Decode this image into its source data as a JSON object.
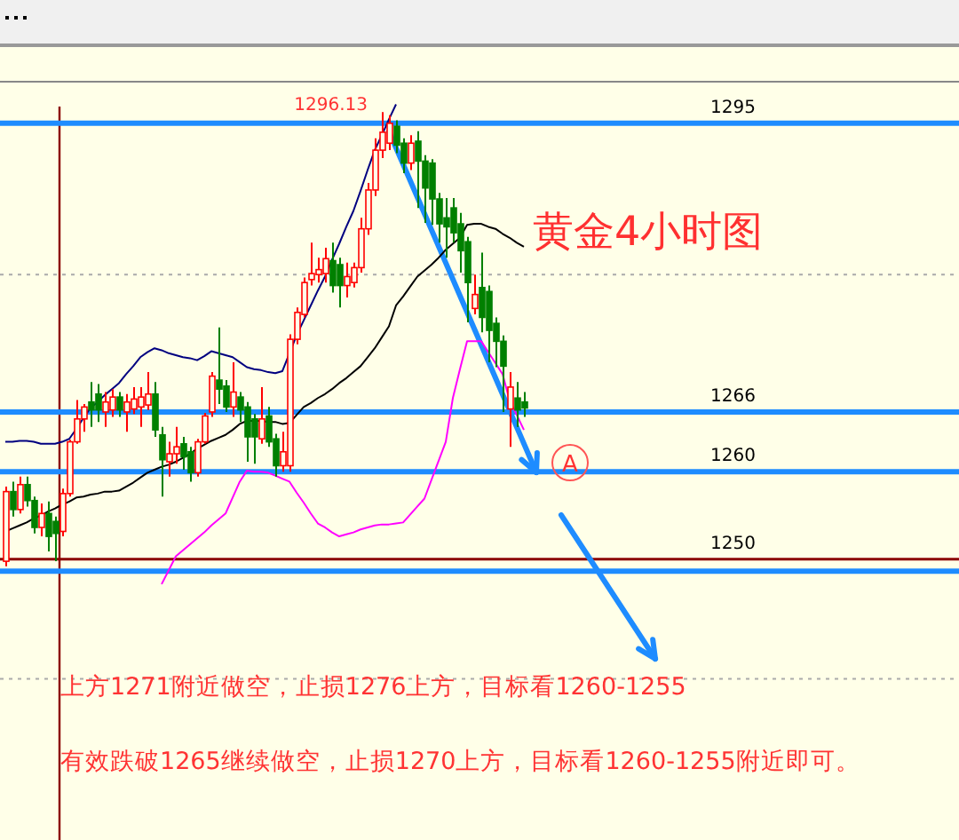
{
  "chart_data": {
    "type": "candlestick",
    "title": "黄金4小时图",
    "categories": [
      null,
      null,
      null,
      null,
      null,
      null,
      null,
      null,
      null,
      null,
      null,
      null,
      null,
      null,
      null,
      null,
      null,
      null,
      null,
      null,
      null,
      null,
      null,
      null,
      null,
      null,
      null,
      null,
      null,
      null,
      null,
      null,
      null,
      null,
      null,
      null,
      null,
      null,
      null,
      null,
      null,
      null,
      null,
      null,
      null,
      null,
      null,
      null,
      null,
      null,
      null,
      null,
      null,
      null,
      null,
      null,
      null,
      null,
      null,
      null,
      null,
      null,
      null,
      null,
      null,
      null,
      null,
      null,
      null,
      null,
      null,
      null,
      null,
      null
    ],
    "ohlc": [
      [
        1251,
        1258.5,
        1250.5,
        1258
      ],
      [
        1258,
        1259,
        1255.5,
        1256.2
      ],
      [
        1256.2,
        1259.5,
        1255.8,
        1258.7
      ],
      [
        1258.7,
        1259.5,
        1256.5,
        1257.1
      ],
      [
        1257.1,
        1257.5,
        1253.8,
        1254.4
      ],
      [
        1254.4,
        1256.8,
        1253.5,
        1255.8
      ],
      [
        1255.8,
        1257,
        1252,
        1253.5
      ],
      [
        1255,
        1255.5,
        1251,
        1253.8
      ],
      [
        1254,
        1258.3,
        1253.5,
        1257.8
      ],
      [
        1257.8,
        1263.2,
        1257.5,
        1263
      ],
      [
        1263,
        1267.2,
        1262.8,
        1265.3
      ],
      [
        1265.3,
        1266.8,
        1264,
        1266.5
      ],
      [
        1267,
        1269,
        1264.5,
        1266.2
      ],
      [
        1267.8,
        1268.8,
        1265,
        1266.2
      ],
      [
        1266,
        1268,
        1264.5,
        1267
      ],
      [
        1266.2,
        1268.3,
        1265.5,
        1267.5
      ],
      [
        1267.5,
        1268,
        1265.5,
        1266.2
      ],
      [
        1266,
        1267.8,
        1264,
        1267
      ],
      [
        1266.3,
        1268.5,
        1265.8,
        1267.3
      ],
      [
        1266.5,
        1268.5,
        1264.5,
        1267.5
      ],
      [
        1266.7,
        1270,
        1266.2,
        1267.8
      ],
      [
        1267.8,
        1269,
        1263.5,
        1264.2
      ],
      [
        1263.7,
        1264.5,
        1257.5,
        1261.2
      ],
      [
        1261,
        1263,
        1259.5,
        1261.8
      ],
      [
        1261.8,
        1264.5,
        1260.8,
        1262.5
      ],
      [
        1262.8,
        1263.5,
        1260.2,
        1261.5
      ],
      [
        1262,
        1262.5,
        1259,
        1259.9
      ],
      [
        1259.9,
        1263.3,
        1259.5,
        1263
      ],
      [
        1263,
        1265.9,
        1262.8,
        1265.6
      ],
      [
        1266,
        1270,
        1265.5,
        1269.6
      ],
      [
        1269.2,
        1274.5,
        1266.8,
        1268.3
      ],
      [
        1268.6,
        1269.2,
        1266,
        1266.5
      ],
      [
        1266.5,
        1271,
        1265.5,
        1268
      ],
      [
        1267.5,
        1268,
        1265,
        1266.2
      ],
      [
        1266.5,
        1267,
        1261,
        1263.5
      ],
      [
        1265.3,
        1265.8,
        1260.8,
        1263.5
      ],
      [
        1263.3,
        1268.5,
        1262.8,
        1265.3
      ],
      [
        1265.6,
        1266.5,
        1262.5,
        1263
      ],
      [
        1263.3,
        1263.8,
        1259.5,
        1260.6
      ],
      [
        1260.6,
        1264,
        1260,
        1262
      ],
      [
        1260.6,
        1273.8,
        1260,
        1273.3
      ],
      [
        1273.3,
        1276.5,
        1272.8,
        1276
      ],
      [
        1275.8,
        1279.5,
        1275.5,
        1279
      ],
      [
        1279.3,
        1283,
        1278.7,
        1279.9
      ],
      [
        1279.8,
        1281.5,
        1279,
        1280.3
      ],
      [
        1279.9,
        1282.5,
        1279,
        1281.4
      ],
      [
        1281.2,
        1283,
        1278,
        1278.7
      ],
      [
        1280.8,
        1281.5,
        1276.5,
        1278.7
      ],
      [
        1278.7,
        1281,
        1277.5,
        1279.6
      ],
      [
        1279,
        1281,
        1278.5,
        1280.5
      ],
      [
        1280.5,
        1285.5,
        1280,
        1284.4
      ],
      [
        1284.4,
        1289,
        1283.8,
        1288.3
      ],
      [
        1288.3,
        1293.5,
        1287.7,
        1292.3
      ],
      [
        1292.3,
        1296.13,
        1291.5,
        1294.1
      ],
      [
        1293,
        1295.8,
        1292.3,
        1295
      ],
      [
        1294.7,
        1295.3,
        1292,
        1292.8
      ],
      [
        1293,
        1293.5,
        1290,
        1291
      ],
      [
        1291,
        1293.8,
        1290.3,
        1293
      ],
      [
        1293.2,
        1294.2,
        1286.5,
        1291.2
      ],
      [
        1291.2,
        1291.8,
        1285,
        1288.5
      ],
      [
        1291,
        1291.4,
        1284.8,
        1287.4
      ],
      [
        1287.4,
        1288,
        1283,
        1284.9
      ],
      [
        1285.5,
        1287.5,
        1281.5,
        1284.6
      ],
      [
        1286.5,
        1287.5,
        1283,
        1284
      ],
      [
        1284.9,
        1286,
        1280,
        1282.2
      ],
      [
        1283.1,
        1283.6,
        1275,
        1279
      ],
      [
        1276.4,
        1279.8,
        1275.8,
        1277.8
      ],
      [
        1278.5,
        1282,
        1274,
        1275.5
      ],
      [
        1278.1,
        1278.7,
        1271,
        1274.2
      ],
      [
        1274.9,
        1275.5,
        1270.5,
        1273.1
      ],
      [
        1273.1,
        1273.7,
        1266,
        1270.6
      ],
      [
        1266.3,
        1270,
        1262.5,
        1268.5
      ],
      [
        1267.4,
        1269,
        1264.5,
        1266.2
      ],
      [
        1267,
        1268,
        1265.5,
        1266.4
      ]
    ],
    "series": [
      {
        "type": "line",
        "color": "#000000",
        "values": [
          1254.0,
          1254.3,
          1254.6,
          1254.9,
          1255.3,
          1255.6,
          1256.0,
          1256.3,
          1256.7,
          1257.0,
          1257.4,
          1257.5,
          1257.7,
          1257.8,
          1258.0,
          1258.0,
          1258.1,
          1258.5,
          1258.9,
          1259.4,
          1259.9,
          1260.2,
          1260.5,
          1260.7,
          1261.0,
          1261.4,
          1261.8,
          1262.3,
          1262.7,
          1263.1,
          1263.4,
          1263.7,
          1264.2,
          1264.8,
          1265.1,
          1265.1,
          1265.1,
          1265.0,
          1265.0,
          1264.8,
          1264.9,
          1265.7,
          1266.5,
          1266.9,
          1267.4,
          1267.8,
          1268.3,
          1268.9,
          1269.4,
          1270.0,
          1270.6,
          1271.5,
          1272.4,
          1273.5,
          1274.6,
          1276.7,
          1277.6,
          1278.6,
          1279.6,
          1280.2,
          1280.8,
          1281.5,
          1282.3,
          1282.9,
          1283.5,
          1284.8,
          1284.9,
          1284.9,
          1284.6,
          1284.4,
          1283.9,
          1283.5,
          1283.0,
          1282.6
        ]
      },
      {
        "type": "line",
        "color": "#000080",
        "values": [
          1263.0,
          1263.0,
          1263.1,
          1263.1,
          1263.0,
          1262.8,
          1262.8,
          1262.8,
          1263.0,
          1263.3,
          1264.3,
          1265.4,
          1266.4,
          1267.0,
          1267.7,
          1268.3,
          1268.9,
          1269.8,
          1270.6,
          1271.5,
          1272.0,
          1272.4,
          1272.2,
          1271.9,
          1271.7,
          1271.5,
          1271.4,
          1271.2,
          1271.6,
          1272.1,
          1271.9,
          1271.7,
          1271.5,
          1271.0,
          1270.5,
          1270.3,
          1270.2,
          1270.0,
          1269.9,
          1270.1,
          1271.9,
          1273.7,
          1275.2,
          1276.7,
          1278.2,
          1279.6,
          1281.3,
          1282.9,
          1284.6,
          1286.2,
          1288.2,
          1290.3,
          1292.3,
          1293.8,
          1295.4,
          1296.9,
          null,
          null,
          null,
          null,
          null,
          null,
          null,
          null,
          null,
          null,
          null,
          null,
          null,
          null,
          null,
          null,
          null,
          null
        ]
      },
      {
        "type": "line",
        "color": "#ff00ff",
        "values": [
          null,
          null,
          null,
          null,
          null,
          null,
          null,
          null,
          null,
          null,
          null,
          null,
          null,
          null,
          null,
          null,
          null,
          null,
          null,
          null,
          null,
          null,
          1248.7,
          1250.1,
          1251.5,
          1252.1,
          1252.7,
          1253.3,
          1253.9,
          1254.6,
          1255.2,
          1255.8,
          1257.4,
          1259.0,
          1260.1,
          1260.0,
          1260.0,
          1259.9,
          1259.6,
          1259.3,
          1259.0,
          1257.9,
          1256.9,
          1255.8,
          1254.8,
          1254.4,
          1253.9,
          1253.5,
          1253.7,
          1253.9,
          1254.2,
          1254.4,
          1254.6,
          1254.7,
          1254.7,
          1254.8,
          1254.9,
          1255.7,
          1256.5,
          1257.3,
          1259.2,
          1261.1,
          1263.0,
          1267.4,
          1270.3,
          1273.1,
          1273.1,
          1273.1,
          1272.0,
          1270.9,
          1269.8,
          1267.1,
          1265.7,
          1264.2
        ]
      }
    ],
    "ylim": [
      1223,
      1299
    ],
    "tick_labels": false,
    "ref_lines": [
      {
        "axis": "y",
        "value": 1295,
        "label": "1295",
        "color": "#1e8cff"
      },
      {
        "axis": "y",
        "value": 1266,
        "label": "1266",
        "color": "#1e8cff"
      },
      {
        "axis": "y",
        "value": 1260,
        "label": "1260",
        "color": "#1e8cff"
      },
      {
        "axis": "y",
        "value": 1250,
        "label": "1250",
        "color": "#1e8cff"
      },
      {
        "axis": "y",
        "value": 1251.2,
        "color": "#8b0000"
      },
      {
        "axis": "y",
        "value": 1279.8,
        "color": "#aaaaaa",
        "line_style": "dotted"
      },
      {
        "axis": "y",
        "value": 1239.2,
        "color": "#aaaaaa",
        "line_style": "dotted"
      }
    ],
    "annotations": [
      {
        "text": "1296.13",
        "y": 1296.13
      },
      {
        "text": "A",
        "y": 1260.9
      },
      "上方1271附近做空，止损1276上方，目标看1260-1255",
      "有效跌破1265继续做空，止损1270上方，目标看1260-1255附近即可。"
    ]
  }
}
